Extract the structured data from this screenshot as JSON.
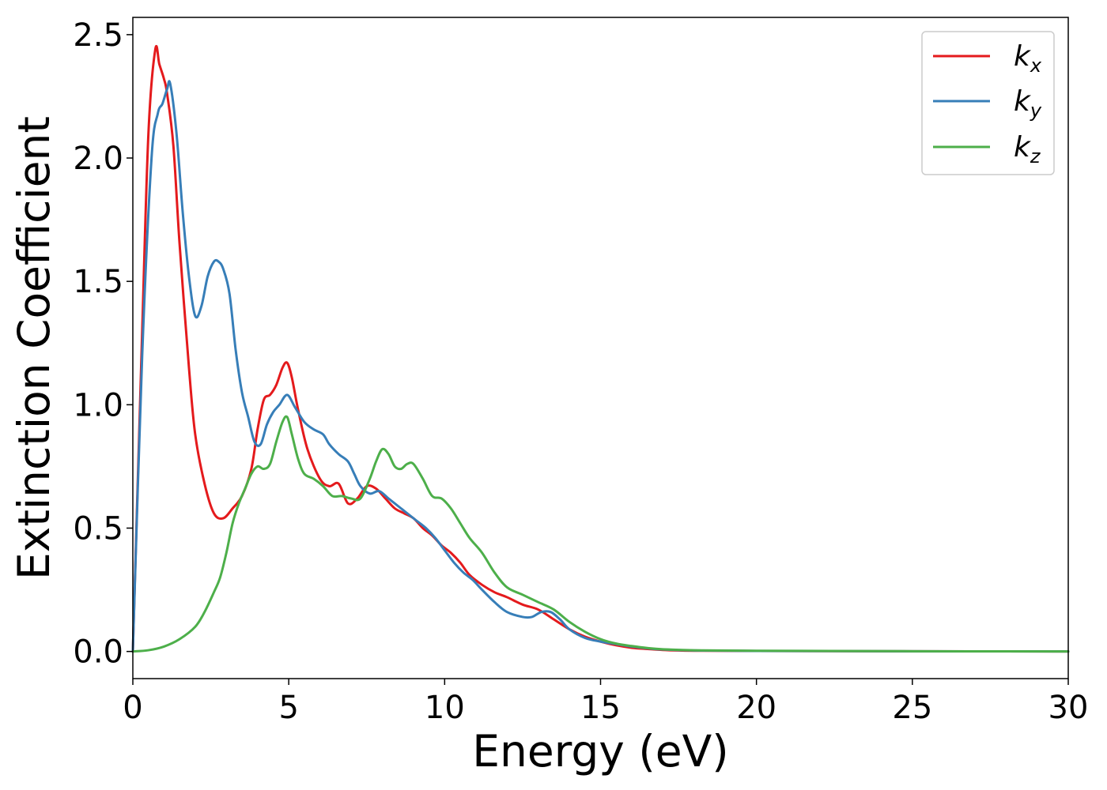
{
  "chart_data": {
    "type": "line",
    "title": "",
    "xlabel": "Energy (eV)",
    "ylabel": "Extinction Coefficient",
    "xlim": [
      0,
      30
    ],
    "ylim": [
      -0.11,
      2.57
    ],
    "xticks": [
      0,
      5,
      10,
      15,
      20,
      25,
      30
    ],
    "xtick_labels": [
      "0",
      "5",
      "10",
      "15",
      "20",
      "25",
      "30"
    ],
    "yticks": [
      0.0,
      0.5,
      1.0,
      1.5,
      2.0,
      2.5
    ],
    "ytick_labels": [
      "0.0",
      "0.5",
      "1.0",
      "1.5",
      "2.0",
      "2.5"
    ],
    "grid": false,
    "legend_position": "top-right",
    "series": [
      {
        "name": "k",
        "subscript": "x",
        "color": "#e41a1c",
        "x": [
          0,
          0.3,
          0.5,
          0.72,
          0.85,
          1.0,
          1.1,
          1.3,
          1.5,
          1.8,
          2.0,
          2.3,
          2.6,
          2.9,
          3.2,
          3.5,
          3.8,
          4.0,
          4.2,
          4.4,
          4.6,
          4.8,
          4.95,
          5.1,
          5.3,
          5.6,
          6.0,
          6.3,
          6.6,
          6.9,
          7.2,
          7.5,
          7.8,
          8.1,
          8.4,
          8.7,
          9.0,
          9.3,
          9.6,
          9.9,
          10.2,
          10.5,
          10.8,
          11.2,
          11.6,
          12.0,
          12.5,
          13.0,
          13.5,
          14.0,
          14.5,
          15.0,
          15.5,
          16.0,
          16.5,
          17.0,
          17.5,
          18.0,
          20.0,
          25.0,
          30.0
        ],
        "y": [
          0.0,
          1.3,
          2.1,
          2.44,
          2.38,
          2.32,
          2.26,
          2.05,
          1.65,
          1.15,
          0.88,
          0.68,
          0.56,
          0.54,
          0.58,
          0.63,
          0.74,
          0.9,
          1.02,
          1.04,
          1.08,
          1.15,
          1.17,
          1.11,
          0.98,
          0.82,
          0.7,
          0.67,
          0.68,
          0.6,
          0.62,
          0.67,
          0.66,
          0.62,
          0.58,
          0.56,
          0.54,
          0.5,
          0.47,
          0.43,
          0.4,
          0.36,
          0.31,
          0.27,
          0.24,
          0.22,
          0.19,
          0.17,
          0.13,
          0.09,
          0.06,
          0.04,
          0.025,
          0.015,
          0.01,
          0.006,
          0.004,
          0.003,
          0.002,
          0.001,
          0.0
        ]
      },
      {
        "name": "k",
        "subscript": "y",
        "color": "#377eb8",
        "x": [
          0,
          0.3,
          0.6,
          0.8,
          0.95,
          1.1,
          1.2,
          1.4,
          1.6,
          1.8,
          2.0,
          2.2,
          2.4,
          2.6,
          2.75,
          2.9,
          3.1,
          3.3,
          3.5,
          3.7,
          3.9,
          4.1,
          4.3,
          4.5,
          4.7,
          4.95,
          5.2,
          5.5,
          5.8,
          6.1,
          6.3,
          6.6,
          6.9,
          7.1,
          7.3,
          7.6,
          7.9,
          8.2,
          8.5,
          8.8,
          9.1,
          9.4,
          9.7,
          10.0,
          10.3,
          10.6,
          10.9,
          11.2,
          11.6,
          12.0,
          12.5,
          12.8,
          13.1,
          13.4,
          13.7,
          14.0,
          14.5,
          15.0,
          15.5,
          16.0,
          16.5,
          17.0,
          18.0,
          20.0,
          25.0,
          30.0
        ],
        "y": [
          0.0,
          1.2,
          2.0,
          2.18,
          2.22,
          2.28,
          2.3,
          2.1,
          1.78,
          1.52,
          1.36,
          1.4,
          1.52,
          1.58,
          1.58,
          1.55,
          1.45,
          1.22,
          1.05,
          0.95,
          0.85,
          0.84,
          0.92,
          0.97,
          1.0,
          1.04,
          0.99,
          0.93,
          0.9,
          0.88,
          0.84,
          0.8,
          0.77,
          0.72,
          0.67,
          0.64,
          0.65,
          0.62,
          0.59,
          0.56,
          0.53,
          0.5,
          0.46,
          0.41,
          0.36,
          0.32,
          0.29,
          0.25,
          0.2,
          0.16,
          0.14,
          0.14,
          0.16,
          0.16,
          0.13,
          0.09,
          0.055,
          0.04,
          0.03,
          0.02,
          0.013,
          0.008,
          0.004,
          0.002,
          0.001,
          0.0
        ]
      },
      {
        "name": "k",
        "subscript": "z",
        "color": "#4daf4a",
        "x": [
          0,
          0.5,
          1.0,
          1.5,
          2.0,
          2.3,
          2.6,
          2.8,
          3.0,
          3.2,
          3.4,
          3.6,
          3.8,
          4.0,
          4.2,
          4.4,
          4.6,
          4.8,
          4.95,
          5.1,
          5.3,
          5.5,
          5.8,
          6.1,
          6.4,
          6.7,
          7.0,
          7.3,
          7.6,
          7.8,
          8.0,
          8.2,
          8.4,
          8.6,
          8.8,
          9.0,
          9.3,
          9.6,
          9.9,
          10.2,
          10.5,
          10.8,
          11.2,
          11.6,
          12.0,
          12.5,
          13.0,
          13.5,
          14.0,
          14.5,
          15.0,
          15.5,
          16.0,
          16.5,
          17.0,
          18.0,
          20.0,
          25.0,
          30.0
        ],
        "y": [
          0.0,
          0.005,
          0.02,
          0.05,
          0.1,
          0.16,
          0.24,
          0.3,
          0.4,
          0.52,
          0.6,
          0.66,
          0.72,
          0.75,
          0.74,
          0.76,
          0.85,
          0.93,
          0.95,
          0.88,
          0.78,
          0.72,
          0.7,
          0.67,
          0.63,
          0.63,
          0.62,
          0.62,
          0.7,
          0.77,
          0.82,
          0.8,
          0.75,
          0.74,
          0.76,
          0.76,
          0.7,
          0.63,
          0.62,
          0.58,
          0.52,
          0.46,
          0.4,
          0.32,
          0.26,
          0.23,
          0.2,
          0.17,
          0.12,
          0.08,
          0.05,
          0.032,
          0.022,
          0.014,
          0.009,
          0.005,
          0.003,
          0.001,
          0.0
        ]
      }
    ]
  }
}
